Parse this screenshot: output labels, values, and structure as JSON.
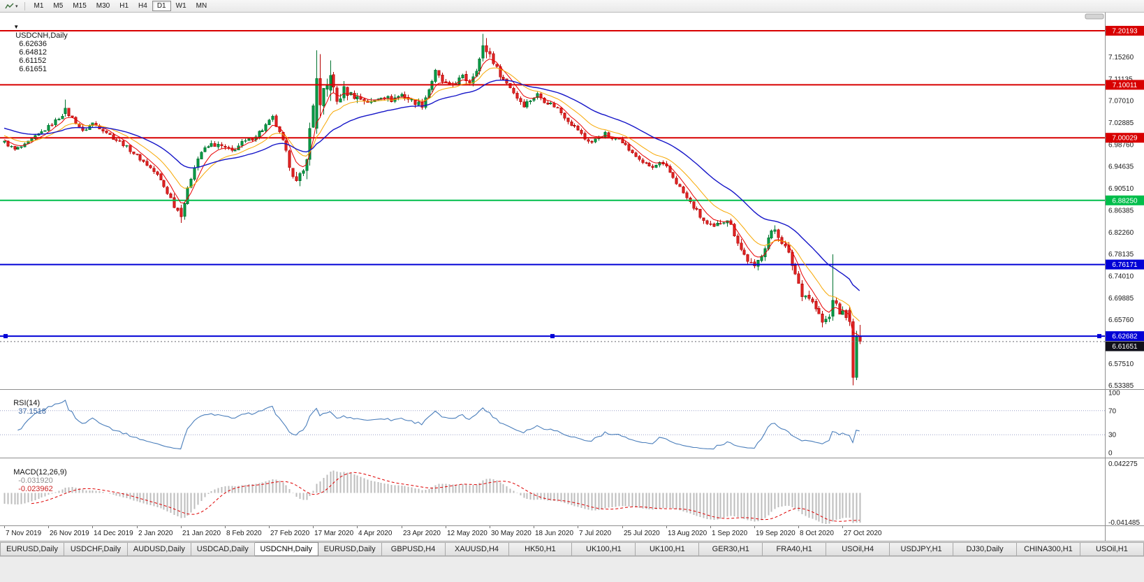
{
  "title_bar": {
    "menu_caret": "▼",
    "symbol": "USDCNH,Daily",
    "open": "6.62636",
    "high": "6.64812",
    "low": "6.61152",
    "close": "6.61651"
  },
  "toolbar": {
    "chart_type_icon": "zigzag-icon",
    "dropdown_caret": "▾",
    "timeframes": [
      "M1",
      "M5",
      "M15",
      "M30",
      "H1",
      "H4",
      "D1",
      "W1",
      "MN"
    ],
    "active_timeframe": "D1"
  },
  "tabs": {
    "active_index": 4,
    "items": [
      "EURUSD,Daily",
      "USDCHF,Daily",
      "AUDUSD,Daily",
      "USDCAD,Daily",
      "USDCNH,Daily",
      "EURUSD,Daily",
      "GBPUSD,H4",
      "XAUUSD,H4",
      "HK50,H1",
      "UK100,H1",
      "UK100,H1",
      "GER30,H1",
      "FRA40,H1",
      "USOil,H4",
      "USDJPY,H1",
      "DJ30,Daily",
      "CHINA300,H1",
      "USOil,H1"
    ]
  },
  "chart_data": {
    "type": "candlestick",
    "title": "USDCNH,Daily",
    "bars": 253,
    "x_label_every_bars": 13,
    "x_labels": [
      "7 Nov 2019",
      "26 Nov 2019",
      "14 Dec 2019",
      "2 Jan 2020",
      "21 Jan 2020",
      "8 Feb 2020",
      "27 Feb 2020",
      "17 Mar 2020",
      "4 Apr 2020",
      "23 Apr 2020",
      "12 May 2020",
      "30 May 2020",
      "18 Jun 2020",
      "7 Jul 2020",
      "25 Jul 2020",
      "13 Aug 2020",
      "1 Sep 2020",
      "19 Sep 2020",
      "8 Oct 2020",
      "27 Oct 2020"
    ],
    "price_axis_ticks": [
      "7.15260",
      "7.11135",
      "7.07010",
      "7.02885",
      "6.98760",
      "6.94635",
      "6.90510",
      "6.86385",
      "6.82260",
      "6.78135",
      "6.74010",
      "6.69885",
      "6.65760",
      "6.57510",
      "6.53385"
    ],
    "price_anchors": [
      [
        0,
        6.992
      ],
      [
        3,
        6.978
      ],
      [
        6,
        6.986
      ],
      [
        9,
        7.002
      ],
      [
        12,
        7.016
      ],
      [
        15,
        7.032
      ],
      [
        18,
        7.05
      ],
      [
        20,
        7.038
      ],
      [
        23,
        7.012
      ],
      [
        26,
        7.028
      ],
      [
        29,
        7.016
      ],
      [
        32,
        7.0
      ],
      [
        35,
        6.988
      ],
      [
        39,
        6.966
      ],
      [
        42,
        6.95
      ],
      [
        45,
        6.93
      ],
      [
        48,
        6.898
      ],
      [
        50,
        6.874
      ],
      [
        52,
        6.854
      ],
      [
        54,
        6.902
      ],
      [
        56,
        6.948
      ],
      [
        58,
        6.974
      ],
      [
        61,
        6.988
      ],
      [
        64,
        6.984
      ],
      [
        67,
        6.975
      ],
      [
        70,
        6.99
      ],
      [
        73,
        7.0
      ],
      [
        76,
        7.016
      ],
      [
        79,
        7.038
      ],
      [
        82,
        6.992
      ],
      [
        84,
        6.95
      ],
      [
        86,
        6.916
      ],
      [
        88,
        6.934
      ],
      [
        90,
        7.01
      ],
      [
        92,
        7.112
      ],
      [
        94,
        7.082
      ],
      [
        96,
        7.11
      ],
      [
        98,
        7.068
      ],
      [
        100,
        7.09
      ],
      [
        102,
        7.082
      ],
      [
        105,
        7.074
      ],
      [
        108,
        7.066
      ],
      [
        111,
        7.08
      ],
      [
        114,
        7.072
      ],
      [
        117,
        7.082
      ],
      [
        120,
        7.07
      ],
      [
        123,
        7.062
      ],
      [
        125,
        7.092
      ],
      [
        127,
        7.124
      ],
      [
        129,
        7.106
      ],
      [
        131,
        7.096
      ],
      [
        133,
        7.106
      ],
      [
        135,
        7.114
      ],
      [
        137,
        7.106
      ],
      [
        139,
        7.132
      ],
      [
        141,
        7.164
      ],
      [
        143,
        7.158
      ],
      [
        145,
        7.13
      ],
      [
        147,
        7.11
      ],
      [
        149,
        7.096
      ],
      [
        151,
        7.076
      ],
      [
        153,
        7.062
      ],
      [
        155,
        7.072
      ],
      [
        157,
        7.082
      ],
      [
        159,
        7.07
      ],
      [
        161,
        7.064
      ],
      [
        163,
        7.056
      ],
      [
        165,
        7.04
      ],
      [
        167,
        7.026
      ],
      [
        169,
        7.016
      ],
      [
        171,
        6.998
      ],
      [
        173,
        6.992
      ],
      [
        175,
        7.002
      ],
      [
        177,
        7.008
      ],
      [
        179,
        6.996
      ],
      [
        181,
        7.002
      ],
      [
        183,
        6.986
      ],
      [
        185,
        6.97
      ],
      [
        187,
        6.96
      ],
      [
        189,
        6.95
      ],
      [
        191,
        6.944
      ],
      [
        193,
        6.952
      ],
      [
        195,
        6.944
      ],
      [
        197,
        6.926
      ],
      [
        199,
        6.906
      ],
      [
        201,
        6.886
      ],
      [
        203,
        6.87
      ],
      [
        205,
        6.852
      ],
      [
        207,
        6.836
      ],
      [
        209,
        6.83
      ],
      [
        211,
        6.842
      ],
      [
        213,
        6.848
      ],
      [
        215,
        6.82
      ],
      [
        217,
        6.79
      ],
      [
        219,
        6.77
      ],
      [
        221,
        6.754
      ],
      [
        223,
        6.782
      ],
      [
        225,
        6.812
      ],
      [
        227,
        6.828
      ],
      [
        229,
        6.806
      ],
      [
        231,
        6.78
      ],
      [
        233,
        6.744
      ],
      [
        235,
        6.708
      ],
      [
        237,
        6.7
      ],
      [
        239,
        6.678
      ],
      [
        241,
        6.652
      ],
      [
        243,
        6.662
      ],
      [
        244,
        6.692
      ],
      [
        246,
        6.672
      ],
      [
        248,
        6.668
      ],
      [
        249,
        6.654
      ],
      [
        250,
        6.549
      ],
      [
        251,
        6.627
      ],
      [
        252,
        6.6165
      ]
    ],
    "volatility_anchors": [
      [
        0,
        0.0045
      ],
      [
        45,
        0.005
      ],
      [
        50,
        0.0085
      ],
      [
        55,
        0.006
      ],
      [
        80,
        0.006
      ],
      [
        86,
        0.01
      ],
      [
        90,
        0.022
      ],
      [
        95,
        0.017
      ],
      [
        100,
        0.012
      ],
      [
        105,
        0.008
      ],
      [
        125,
        0.007
      ],
      [
        139,
        0.009
      ],
      [
        143,
        0.0085
      ],
      [
        150,
        0.0065
      ],
      [
        175,
        0.0045
      ],
      [
        195,
        0.0055
      ],
      [
        205,
        0.0075
      ],
      [
        220,
        0.0085
      ],
      [
        230,
        0.01
      ],
      [
        240,
        0.011
      ],
      [
        252,
        0.011
      ]
    ],
    "special_candles": {
      "18": [
        7.046,
        7.072,
        7.04,
        7.056
      ],
      "52": [
        6.868,
        6.874,
        6.84,
        6.852
      ],
      "92": [
        7.018,
        7.165,
        7.008,
        7.112
      ],
      "93": [
        7.112,
        7.158,
        7.038,
        7.062
      ],
      "96": [
        7.09,
        7.146,
        7.07,
        7.118
      ],
      "141": [
        7.15,
        7.196,
        7.144,
        7.174
      ],
      "142": [
        7.174,
        7.188,
        7.15,
        7.162
      ],
      "244": [
        6.664,
        6.781,
        6.656,
        6.694
      ],
      "249": [
        6.676,
        6.682,
        6.646,
        6.654
      ],
      "250": [
        6.654,
        6.66,
        6.534,
        6.549
      ],
      "251": [
        6.549,
        6.637,
        6.544,
        6.627
      ],
      "252": [
        6.62636,
        6.64812,
        6.61152,
        6.61651
      ]
    },
    "up_color": "#00A44A",
    "up_border": "#00722F",
    "down_color": "#EB2D2D",
    "down_border": "#B50000",
    "h_lines": [
      {
        "price": 7.20193,
        "badge": "7.20193",
        "color": "#D80000",
        "width": 2,
        "selected": false
      },
      {
        "price": 7.10011,
        "badge": "7.10011",
        "color": "#D80000",
        "width": 2,
        "selected": false
      },
      {
        "price": 7.00029,
        "badge": "7.00029",
        "color": "#D80000",
        "width": 2,
        "selected": false
      },
      {
        "price": 6.8825,
        "badge": "6.88250",
        "color": "#00BE4B",
        "width": 2,
        "selected": false
      },
      {
        "price": 6.76171,
        "badge": "6.76171",
        "color": "#0202D6",
        "width": 2,
        "selected": false
      },
      {
        "price": 6.62682,
        "badge": "6.62682",
        "color": "#0202D6",
        "width": 2,
        "selected": true
      }
    ],
    "current_price": {
      "text": "6.61651",
      "price": 6.61651,
      "color": "#10101A"
    },
    "last_candle_ohlc": [
      6.62636,
      6.64812,
      6.61152,
      6.61651
    ],
    "moving_averages": [
      {
        "period": 6,
        "color": "#E80000",
        "width": 1,
        "seed": 0.004
      },
      {
        "period": 14,
        "color": "#F7A700",
        "width": 1,
        "seed": 0.012
      },
      {
        "period": 34,
        "color": "#1515C8",
        "width": 1.4,
        "seed": 0.026
      }
    ],
    "indicators": {
      "rsi": {
        "label": "RSI(14)",
        "value": "37.1518",
        "period": 14,
        "color": "#4A7EBB",
        "axis_labels": [
          "100",
          "70",
          "30",
          "0"
        ],
        "level_lines": [
          70,
          30
        ]
      },
      "macd": {
        "label": "MACD(12,26,9)",
        "value_main": "-0.031920",
        "value_signal": "-0.023962",
        "fast": 12,
        "slow": 26,
        "signal": 9,
        "hist_color": "#BDBDBD",
        "signal_color": "#DE0000",
        "scale_top": "0.042275",
        "scale_bottom": "-0.041485"
      }
    }
  }
}
